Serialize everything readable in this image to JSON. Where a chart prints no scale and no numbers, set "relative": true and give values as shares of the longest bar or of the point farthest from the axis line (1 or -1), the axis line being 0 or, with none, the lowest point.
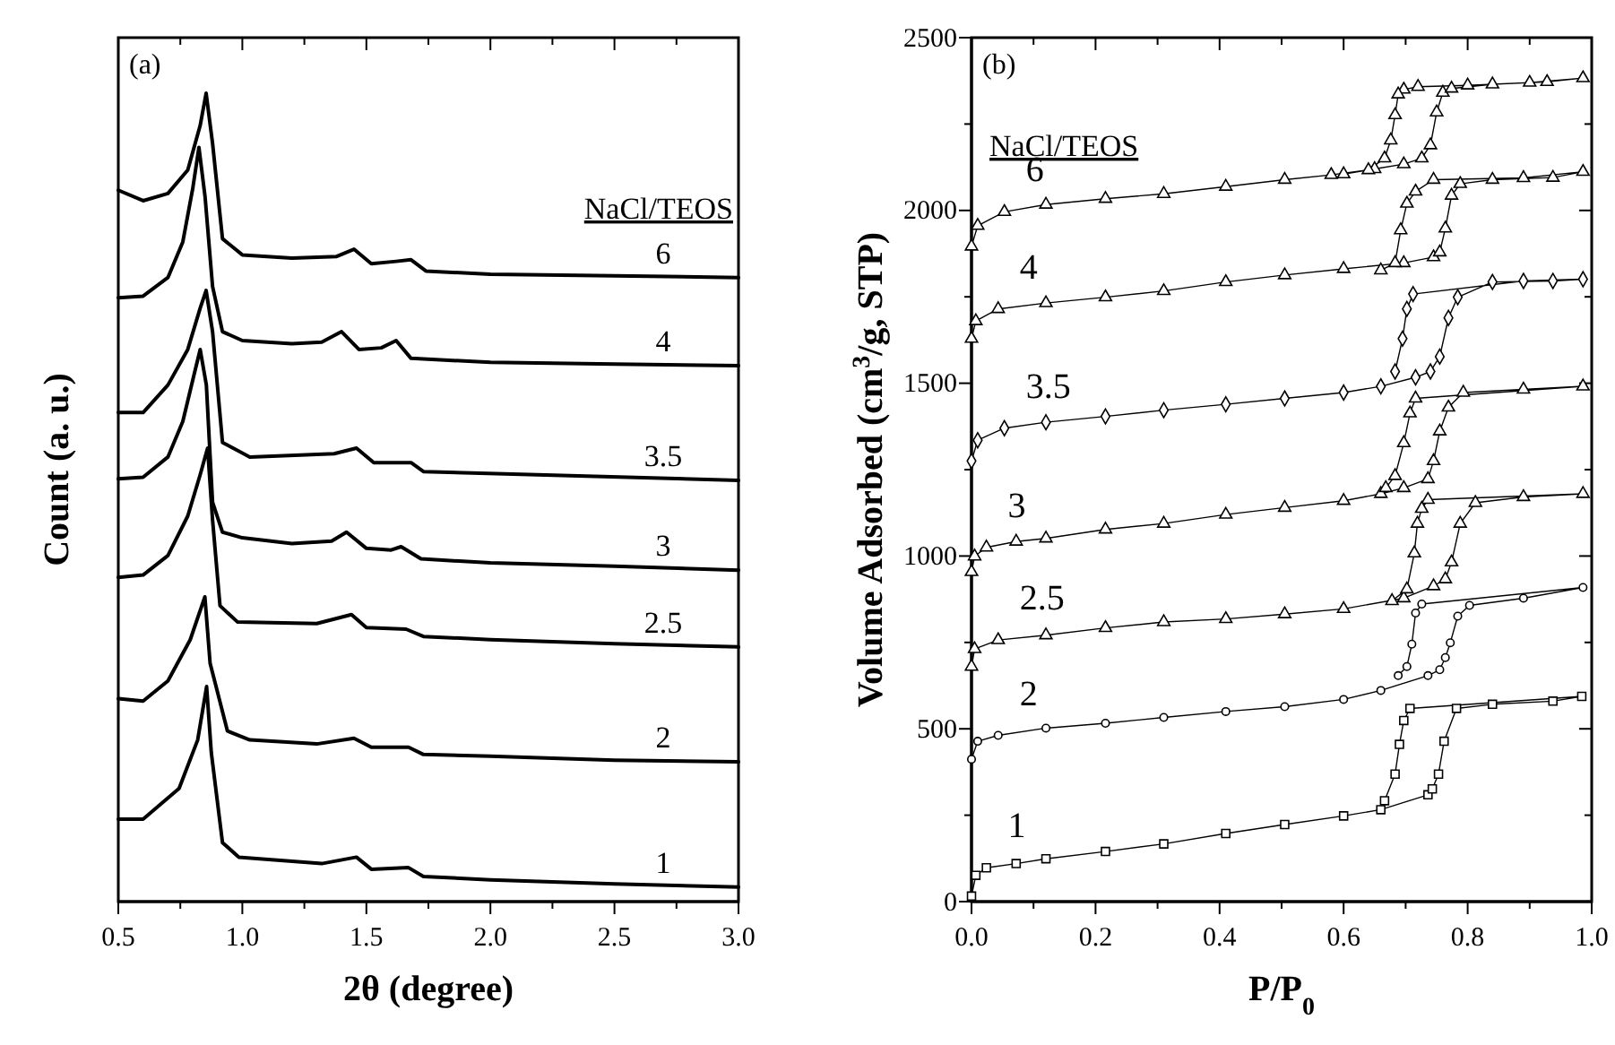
{
  "chart_data": [
    {
      "type": "line",
      "xlabel": "2θ (degree)",
      "ylabel": "Count (a. u.)",
      "relative": true,
      "xlim": [
        0.5,
        3.0
      ],
      "xticks": [
        0.5,
        {
          "value": 0.75,
          "label": null
        },
        {
          "value": 1.0,
          "label": "1.0"
        },
        {
          "value": 1.25,
          "label": null
        },
        1.5,
        {
          "value": 1.75,
          "label": null
        },
        {
          "value": 2.0,
          "label": "2.0"
        },
        {
          "value": 2.25,
          "label": null
        },
        2.5,
        {
          "value": 2.75,
          "label": null
        },
        {
          "value": 3.0,
          "label": "3.0"
        }
      ],
      "annotations": [
        "(a)",
        "NaCl/TEOS"
      ],
      "series": [
        {
          "name": "6",
          "color": "#000000",
          "x": [
            0.5,
            0.6,
            0.7,
            0.78,
            0.83,
            0.854,
            0.88,
            0.92,
            1.0,
            1.2,
            1.38,
            1.45,
            1.52,
            1.62,
            1.68,
            1.74,
            2.0,
            2.5,
            3.0
          ],
          "values": [
            0.88,
            0.867,
            0.876,
            0.905,
            0.96,
            1.0,
            0.938,
            0.82,
            0.8,
            0.796,
            0.798,
            0.807,
            0.789,
            0.792,
            0.794,
            0.78,
            0.776,
            0.774,
            0.772
          ]
        },
        {
          "name": "4",
          "color": "#000000",
          "x": [
            0.5,
            0.6,
            0.7,
            0.76,
            0.8,
            0.825,
            0.85,
            0.88,
            0.92,
            1.0,
            1.2,
            1.32,
            1.4,
            1.47,
            1.56,
            1.62,
            1.68,
            2.0,
            2.5,
            3.0
          ],
          "values": [
            0.747,
            0.749,
            0.772,
            0.816,
            0.882,
            0.933,
            0.871,
            0.761,
            0.705,
            0.694,
            0.69,
            0.692,
            0.705,
            0.683,
            0.685,
            0.694,
            0.672,
            0.667,
            0.665,
            0.663
          ]
        },
        {
          "name": "3.5",
          "color": "#000000",
          "x": [
            0.5,
            0.6,
            0.7,
            0.78,
            0.83,
            0.854,
            0.88,
            0.92,
            1.03,
            1.37,
            1.46,
            1.53,
            1.68,
            1.73,
            2.19,
            3.0
          ],
          "values": [
            0.605,
            0.605,
            0.639,
            0.683,
            0.734,
            0.756,
            0.705,
            0.568,
            0.55,
            0.554,
            0.561,
            0.543,
            0.543,
            0.532,
            0.528,
            0.521
          ]
        },
        {
          "name": "3",
          "color": "#000000",
          "x": [
            0.5,
            0.6,
            0.7,
            0.76,
            0.8,
            0.83,
            0.855,
            0.88,
            0.92,
            1.0,
            1.2,
            1.36,
            1.42,
            1.5,
            1.6,
            1.64,
            1.72,
            2.0,
            2.5,
            3.0
          ],
          "values": [
            0.523,
            0.525,
            0.55,
            0.594,
            0.645,
            0.683,
            0.639,
            0.494,
            0.457,
            0.45,
            0.443,
            0.446,
            0.457,
            0.437,
            0.435,
            0.439,
            0.424,
            0.419,
            0.415,
            0.41
          ]
        },
        {
          "name": "2.5",
          "color": "#000000",
          "x": [
            0.5,
            0.6,
            0.7,
            0.78,
            0.83,
            0.86,
            0.88,
            0.91,
            0.98,
            1.3,
            1.44,
            1.5,
            1.66,
            1.73,
            2.0,
            2.5,
            3.0
          ],
          "values": [
            0.401,
            0.404,
            0.428,
            0.477,
            0.528,
            0.561,
            0.472,
            0.366,
            0.346,
            0.344,
            0.355,
            0.339,
            0.337,
            0.328,
            0.324,
            0.319,
            0.315
          ]
        },
        {
          "name": "2",
          "color": "#000000",
          "x": [
            0.5,
            0.6,
            0.7,
            0.79,
            0.849,
            0.87,
            0.94,
            1.03,
            1.3,
            1.45,
            1.52,
            1.67,
            1.73,
            2.0,
            2.5,
            3.0
          ],
          "values": [
            0.251,
            0.248,
            0.273,
            0.324,
            0.377,
            0.295,
            0.211,
            0.2,
            0.195,
            0.202,
            0.191,
            0.191,
            0.182,
            0.18,
            0.175,
            0.173
          ]
        },
        {
          "name": "1",
          "color": "#000000",
          "x": [
            0.5,
            0.6,
            0.745,
            0.82,
            0.856,
            0.875,
            0.92,
            0.986,
            1.32,
            1.46,
            1.52,
            1.67,
            1.73,
            2.0,
            2.5,
            3.0
          ],
          "values": [
            0.102,
            0.102,
            0.14,
            0.2,
            0.266,
            0.184,
            0.073,
            0.055,
            0.047,
            0.055,
            0.04,
            0.042,
            0.031,
            0.027,
            0.022,
            0.018
          ]
        }
      ]
    },
    {
      "type": "line",
      "xlabel": "P/P$_{0}$",
      "ylabel": "Volume Adsorbed (cm$^{3}$/g, STP)",
      "xlim": [
        0,
        1
      ],
      "ylim": [
        0,
        2500
      ],
      "xticks": [
        {
          "value": 0,
          "label": "0.0"
        },
        {
          "value": 0.1,
          "label": null
        },
        0.2,
        {
          "value": 0.3,
          "label": null
        },
        0.4,
        {
          "value": 0.5,
          "label": null
        },
        0.6,
        {
          "value": 0.7,
          "label": null
        },
        0.8,
        {
          "value": 0.9,
          "label": null
        },
        {
          "value": 1,
          "label": "1.0"
        }
      ],
      "yticks": [
        0,
        {
          "value": 250,
          "label": null
        },
        500,
        {
          "value": 750,
          "label": null
        },
        1000,
        {
          "value": 1250,
          "label": null
        },
        1500,
        {
          "value": 1750,
          "label": null
        },
        2000,
        {
          "value": 2250,
          "label": null
        },
        2500
      ],
      "annotations": [
        "(b)",
        "NaCl/TEOS"
      ],
      "series": [
        {
          "name": "6",
          "color": "#000000",
          "marker": "triangle",
          "x": [
            0,
            0.01,
            0.053,
            0.12,
            0.216,
            0.31,
            0.41,
            0.505,
            0.58,
            0.65,
            0.697,
            0.726,
            0.74,
            0.75,
            0.76,
            0.774,
            0.84,
            0.928,
            0.986,
            0.9,
            0.8,
            0.72,
            0.697,
            0.688,
            0.683,
            0.676,
            0.666,
            0.64,
            0.6
          ],
          "values": [
            1896,
            1956,
            1996,
            2017,
            2034,
            2048,
            2069,
            2089,
            2103,
            2120,
            2134,
            2151,
            2189,
            2284,
            2341,
            2353,
            2365,
            2372,
            2383,
            2370,
            2362,
            2358,
            2350,
            2336,
            2276,
            2203,
            2151,
            2117,
            2105
          ]
        },
        {
          "name": "4",
          "color": "#000000",
          "marker": "triangle",
          "x": [
            0,
            0.007,
            0.043,
            0.12,
            0.216,
            0.31,
            0.41,
            0.505,
            0.6,
            0.697,
            0.745,
            0.755,
            0.764,
            0.774,
            0.788,
            0.84,
            0.9375,
            0.986,
            0.89,
            0.745,
            0.716,
            0.702,
            0.692,
            0.683,
            0.66
          ],
          "values": [
            1629,
            1680,
            1715,
            1732,
            1749,
            1767,
            1793,
            1813,
            1831,
            1848,
            1865,
            1879,
            1948,
            2043,
            2077,
            2089,
            2095,
            2112,
            2094,
            2089,
            2055,
            2020,
            1943,
            1848,
            1827
          ]
        },
        {
          "name": "3.5",
          "color": "#000000",
          "marker": "diamond",
          "x": [
            0,
            0.01,
            0.053,
            0.12,
            0.216,
            0.31,
            0.41,
            0.505,
            0.6,
            0.66,
            0.716,
            0.74,
            0.755,
            0.769,
            0.784,
            0.84,
            0.9375,
            0.986,
            0.89,
            0.712,
            0.702,
            0.695,
            0.683
          ],
          "values": [
            1275,
            1335,
            1370,
            1387,
            1404,
            1422,
            1439,
            1456,
            1473,
            1491,
            1517,
            1534,
            1577,
            1689,
            1749,
            1793,
            1796,
            1801,
            1796,
            1758,
            1715,
            1629,
            1534
          ]
        },
        {
          "name": "3",
          "color": "#000000",
          "marker": "triangle",
          "x": [
            0,
            0.005,
            0.024,
            0.072,
            0.12,
            0.216,
            0.31,
            0.41,
            0.505,
            0.6,
            0.66,
            0.697,
            0.736,
            0.745,
            0.755,
            0.769,
            0.793,
            0.89,
            0.986,
            0.716,
            0.707,
            0.697,
            0.683,
            0.668
          ],
          "values": [
            954,
            999,
            1025,
            1042,
            1051,
            1077,
            1094,
            1120,
            1140,
            1160,
            1180,
            1197,
            1223,
            1275,
            1361,
            1430,
            1473,
            1482,
            1491,
            1456,
            1413,
            1327,
            1232,
            1197
          ]
        },
        {
          "name": "2.5",
          "color": "#000000",
          "marker": "triangle",
          "x": [
            0,
            0.005,
            0.043,
            0.12,
            0.216,
            0.31,
            0.41,
            0.505,
            0.6,
            0.697,
            0.745,
            0.764,
            0.774,
            0.788,
            0.8125,
            0.89,
            0.986,
            0.736,
            0.726,
            0.719,
            0.714,
            0.702,
            0.678
          ],
          "values": [
            680,
            731,
            757,
            771,
            792,
            809,
            818,
            832,
            847,
            878,
            913,
            933,
            982,
            1094,
            1154,
            1171,
            1180,
            1163,
            1137,
            1094,
            1008,
            904,
            870
          ]
        },
        {
          "name": "2",
          "color": "#000000",
          "marker": "circle",
          "x": [
            0,
            0.01,
            0.043,
            0.12,
            0.216,
            0.31,
            0.41,
            0.505,
            0.6,
            0.66,
            0.736,
            0.755,
            0.764,
            0.772,
            0.784,
            0.803,
            0.89,
            0.986,
            0.726,
            0.716,
            0.71,
            0.702,
            0.688
          ],
          "values": [
            412,
            464,
            481,
            502,
            516,
            533,
            550,
            564,
            585,
            611,
            654,
            671,
            706,
            749,
            826,
            857,
            878,
            909,
            861,
            835,
            745,
            680,
            654
          ]
        },
        {
          "name": "1",
          "color": "#000000",
          "marker": "square",
          "x": [
            0,
            0.007,
            0.024,
            0.072,
            0.12,
            0.216,
            0.31,
            0.41,
            0.505,
            0.6,
            0.66,
            0.736,
            0.743,
            0.753,
            0.762,
            0.782,
            0.84,
            0.9375,
            0.984,
            0.707,
            0.697,
            0.69,
            0.683,
            0.666
          ],
          "values": [
            16,
            76,
            98,
            110,
            124,
            145,
            167,
            197,
            223,
            248,
            266,
            309,
            326,
            369,
            464,
            559,
            571,
            580,
            594,
            559,
            524,
            455,
            369,
            292
          ]
        }
      ]
    }
  ]
}
